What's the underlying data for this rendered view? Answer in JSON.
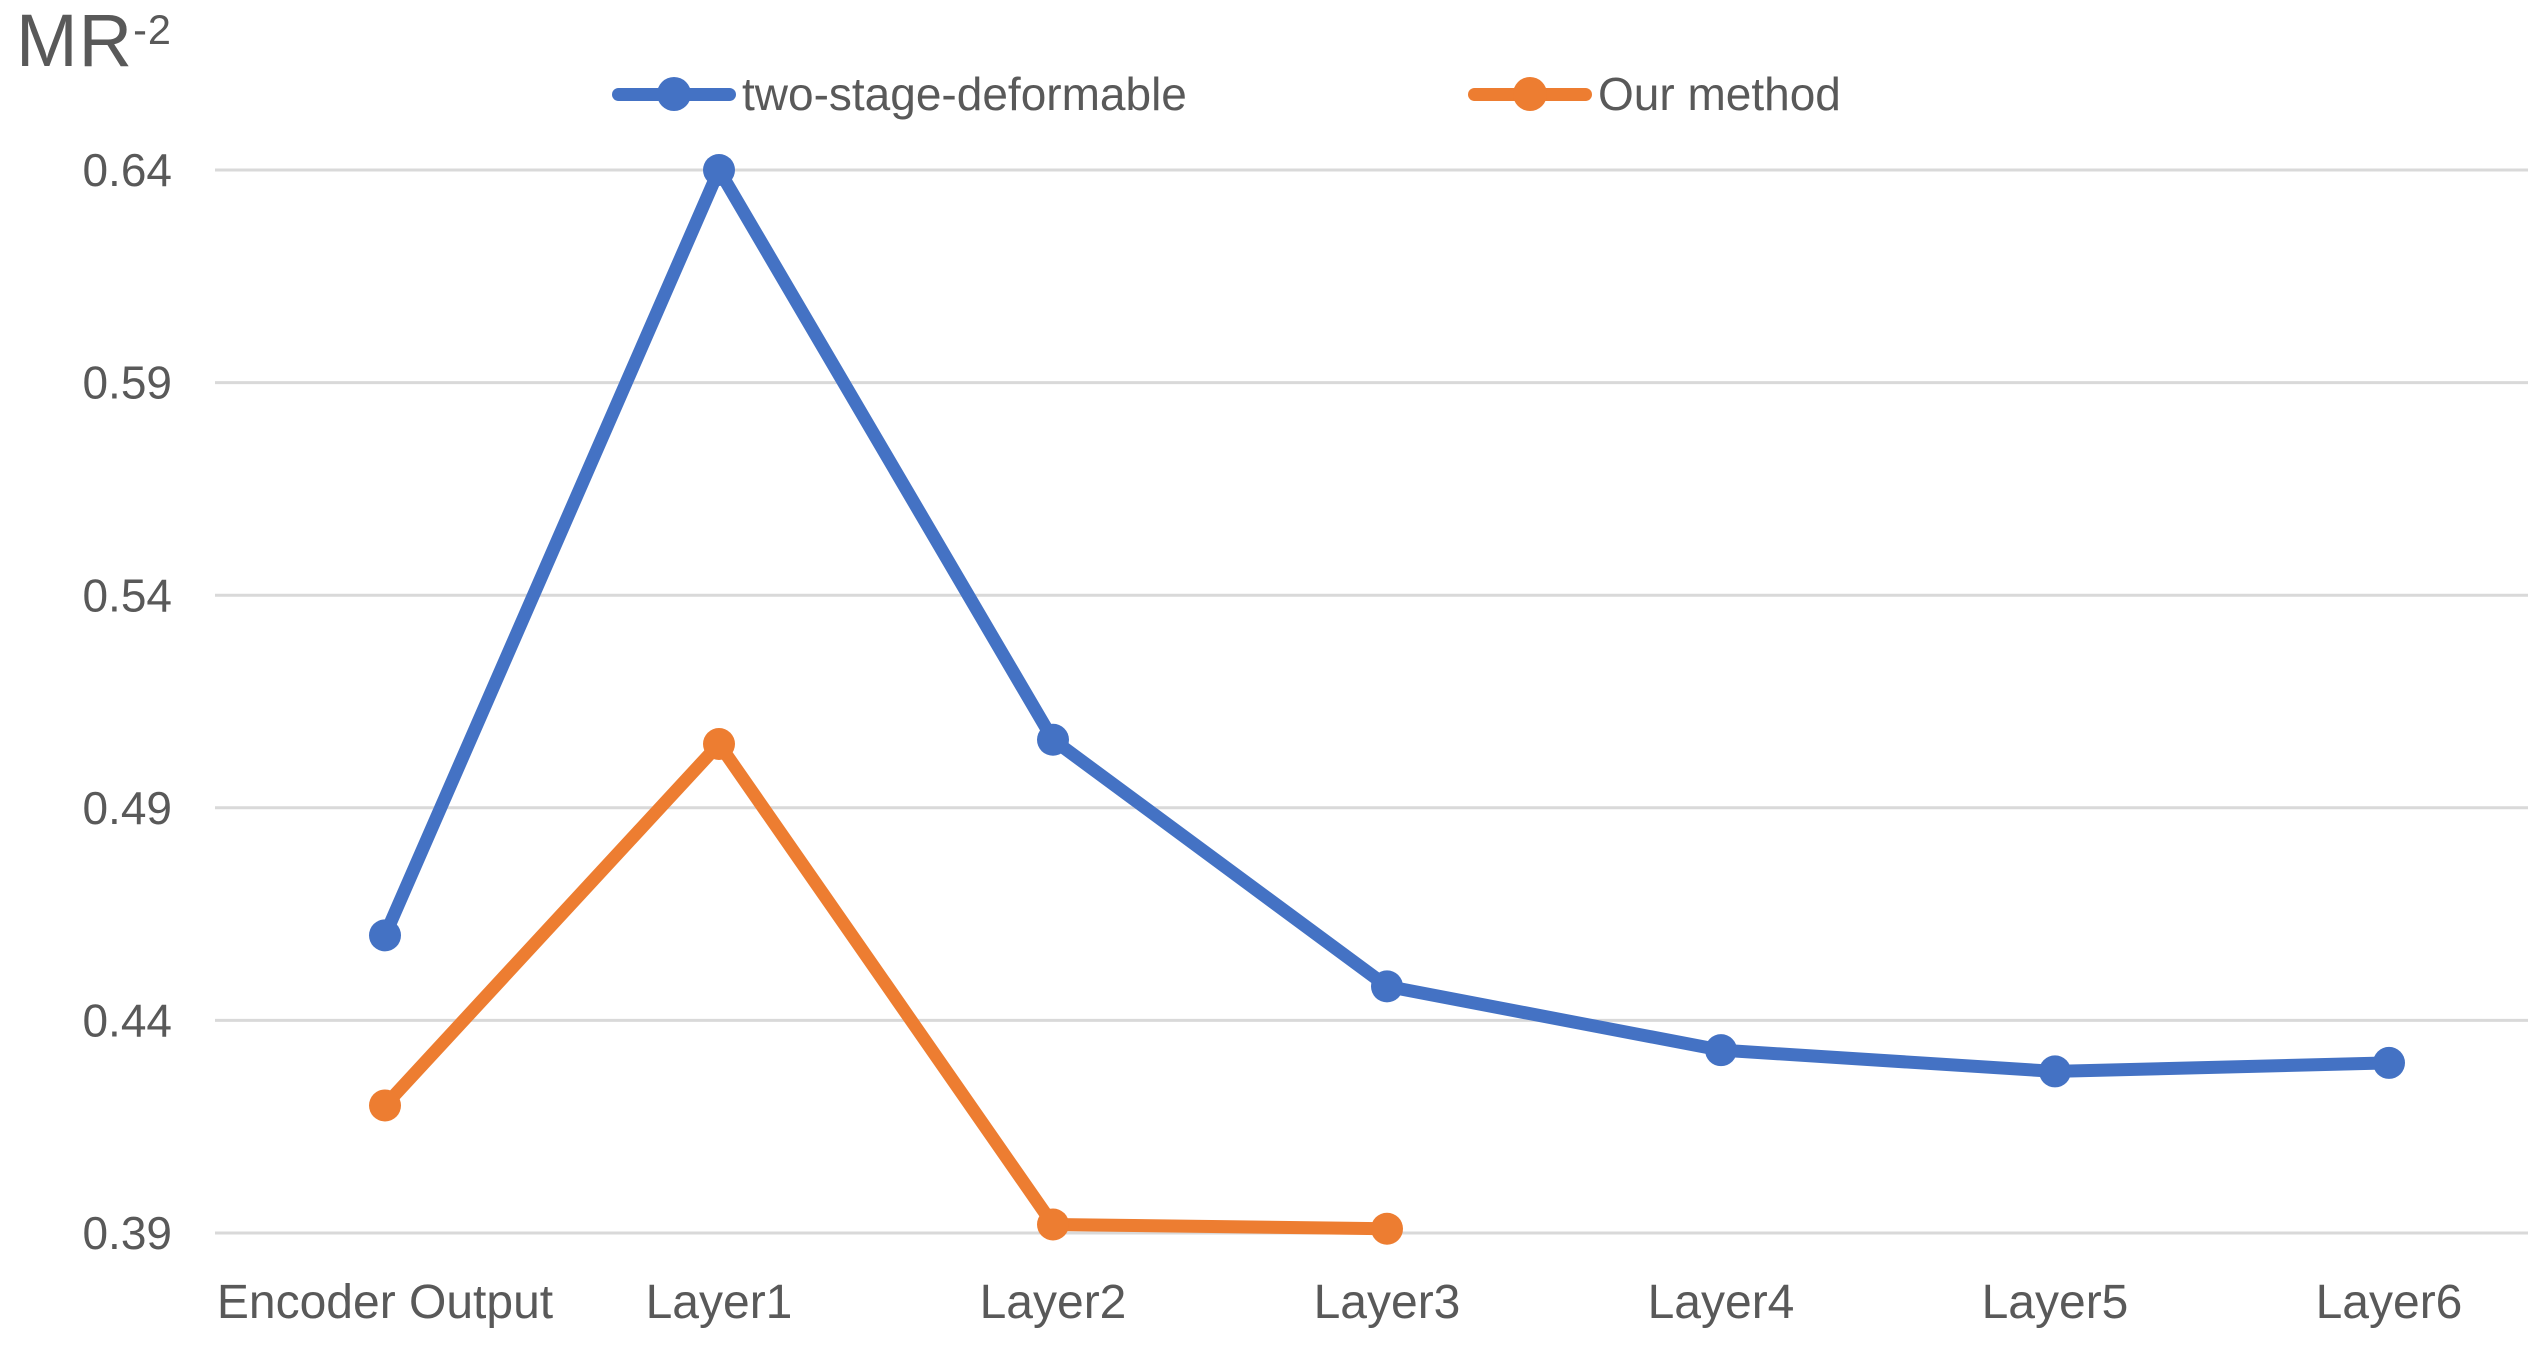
{
  "title": {
    "base": "MR",
    "superscript": "-2"
  },
  "legend": [
    {
      "label": "two-stage-deformable",
      "color": "#4472C4"
    },
    {
      "label": "Our method",
      "color": "#ED7D31"
    }
  ],
  "y_axis": {
    "tick_labels": [
      "0.64",
      "0.59",
      "0.54",
      "0.49",
      "0.44",
      "0.39"
    ]
  },
  "x_axis": {
    "tick_labels": [
      "Encoder Output",
      "Layer1",
      "Layer2",
      "Layer3",
      "Layer4",
      "Layer5",
      "Layer6"
    ]
  },
  "chart_data": {
    "type": "line",
    "title": "MR^-2",
    "categories": [
      "Encoder Output",
      "Layer1",
      "Layer2",
      "Layer3",
      "Layer4",
      "Layer5",
      "Layer6"
    ],
    "series": [
      {
        "name": "two-stage-deformable",
        "color": "#4472C4",
        "marker": "circle",
        "values": [
          0.46,
          0.64,
          0.506,
          0.448,
          0.433,
          0.428,
          0.43
        ]
      },
      {
        "name": "Our method",
        "color": "#ED7D31",
        "marker": "circle",
        "values": [
          0.42,
          0.505,
          0.392,
          0.391,
          null,
          null,
          null
        ]
      }
    ],
    "xlabel": "",
    "ylabel": "MR^-2",
    "ylim": [
      0.39,
      0.64
    ],
    "ytick_step": 0.05,
    "grid": true,
    "gridline_color": "#D9D9D9",
    "text_color": "#595959",
    "legend_position": "top"
  }
}
